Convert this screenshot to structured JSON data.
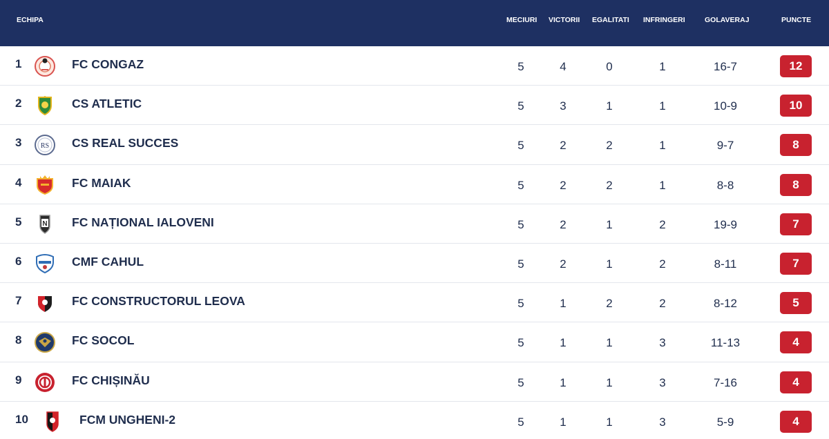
{
  "header": {
    "team": "ECHIPA",
    "played": "MECIURI",
    "wins": "VICTORII",
    "draws": "EGALITATI",
    "losses": "INFRINGERI",
    "goals": "GOLAVERAJ",
    "points": "PUNCTE"
  },
  "colors": {
    "header_bg": "#1e3062",
    "points_badge": "#c8222f",
    "text": "#1f2d4d"
  },
  "rows": [
    {
      "pos": "1",
      "team": "FC CONGAZ",
      "played": "5",
      "wins": "4",
      "draws": "0",
      "losses": "1",
      "goals": "16-7",
      "points": "12",
      "logo": "congaz-crest-icon"
    },
    {
      "pos": "2",
      "team": "CS ATLETIC",
      "played": "5",
      "wins": "3",
      "draws": "1",
      "losses": "1",
      "goals": "10-9",
      "points": "10",
      "logo": "atletic-crest-icon"
    },
    {
      "pos": "3",
      "team": "CS REAL SUCCES",
      "played": "5",
      "wins": "2",
      "draws": "2",
      "losses": "1",
      "goals": "9-7",
      "points": "8",
      "logo": "real-succes-crest-icon"
    },
    {
      "pos": "4",
      "team": "FC MAIAK",
      "played": "5",
      "wins": "2",
      "draws": "2",
      "losses": "1",
      "goals": "8-8",
      "points": "8",
      "logo": "maiak-crest-icon"
    },
    {
      "pos": "5",
      "team": "FC NAȚIONAL IALOVENI",
      "played": "5",
      "wins": "2",
      "draws": "1",
      "losses": "2",
      "goals": "19-9",
      "points": "7",
      "logo": "national-crest-icon"
    },
    {
      "pos": "6",
      "team": "CMF CAHUL",
      "played": "5",
      "wins": "2",
      "draws": "1",
      "losses": "2",
      "goals": "8-11",
      "points": "7",
      "logo": "cahul-crest-icon"
    },
    {
      "pos": "7",
      "team": "FC CONSTRUCTORUL LEOVA",
      "played": "5",
      "wins": "1",
      "draws": "2",
      "losses": "2",
      "goals": "8-12",
      "points": "5",
      "logo": "constructorul-crest-icon"
    },
    {
      "pos": "8",
      "team": "FC SOCOL",
      "played": "5",
      "wins": "1",
      "draws": "1",
      "losses": "3",
      "goals": "11-13",
      "points": "4",
      "logo": "socol-crest-icon"
    },
    {
      "pos": "9",
      "team": "FC CHIȘINĂU",
      "played": "5",
      "wins": "1",
      "draws": "1",
      "losses": "3",
      "goals": "7-16",
      "points": "4",
      "logo": "chisinau-crest-icon"
    },
    {
      "pos": "10",
      "team": "FCM UNGHENI-2",
      "played": "5",
      "wins": "1",
      "draws": "1",
      "losses": "3",
      "goals": "5-9",
      "points": "4",
      "logo": "ungheni-crest-icon"
    }
  ]
}
